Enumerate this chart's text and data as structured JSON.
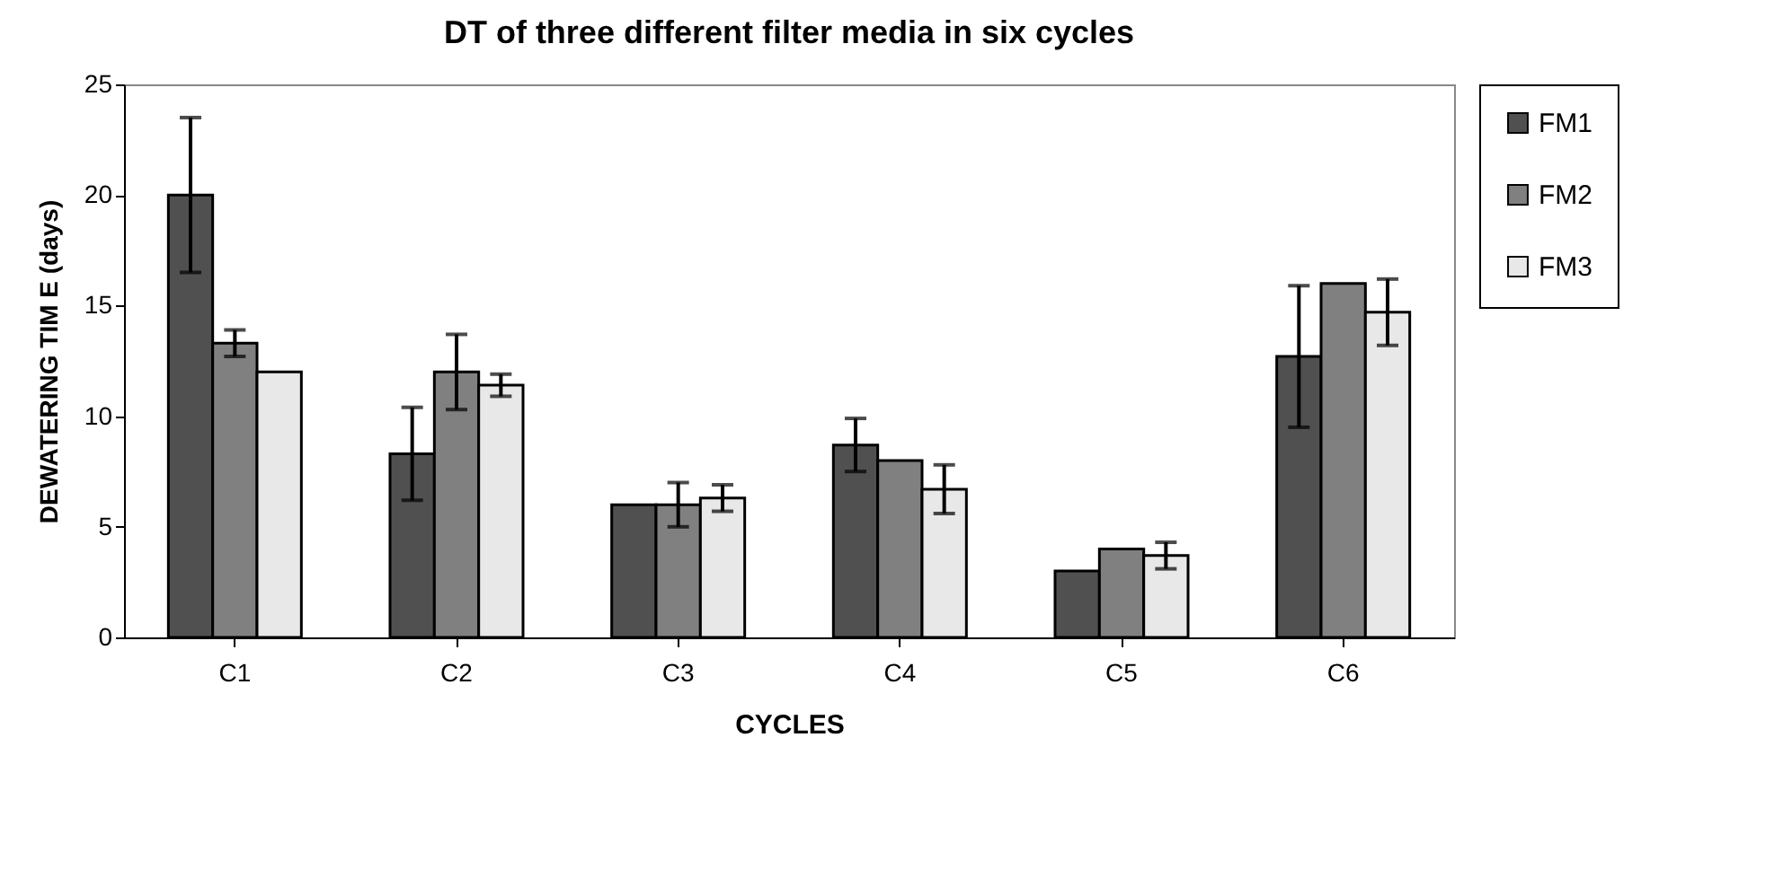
{
  "chart_data": {
    "type": "bar",
    "title": "DT of three different filter media in six cycles",
    "xlabel": "CYCLES",
    "ylabel": "DEWATERING TIM E (days)",
    "categories": [
      "C1",
      "C2",
      "C3",
      "C4",
      "C5",
      "C6"
    ],
    "series": [
      {
        "name": "FM1",
        "color": "#505050",
        "values": [
          20,
          8.3,
          6,
          8.7,
          3,
          12.7
        ],
        "errors": [
          3.5,
          2.1,
          null,
          1.2,
          null,
          3.2
        ]
      },
      {
        "name": "FM2",
        "color": "#808080",
        "values": [
          13.3,
          12,
          6,
          8,
          4,
          16
        ],
        "errors": [
          0.6,
          1.7,
          1,
          null,
          null,
          null
        ]
      },
      {
        "name": "FM3",
        "color": "#e8e8e8",
        "values": [
          12,
          11.4,
          6.3,
          6.7,
          3.7,
          14.7
        ],
        "errors": [
          null,
          0.5,
          0.6,
          1.1,
          0.6,
          1.5
        ]
      }
    ],
    "ylim": [
      0,
      25
    ],
    "yticks": [
      0,
      5,
      10,
      15,
      20,
      25
    ],
    "grid": false,
    "legend": "right"
  }
}
